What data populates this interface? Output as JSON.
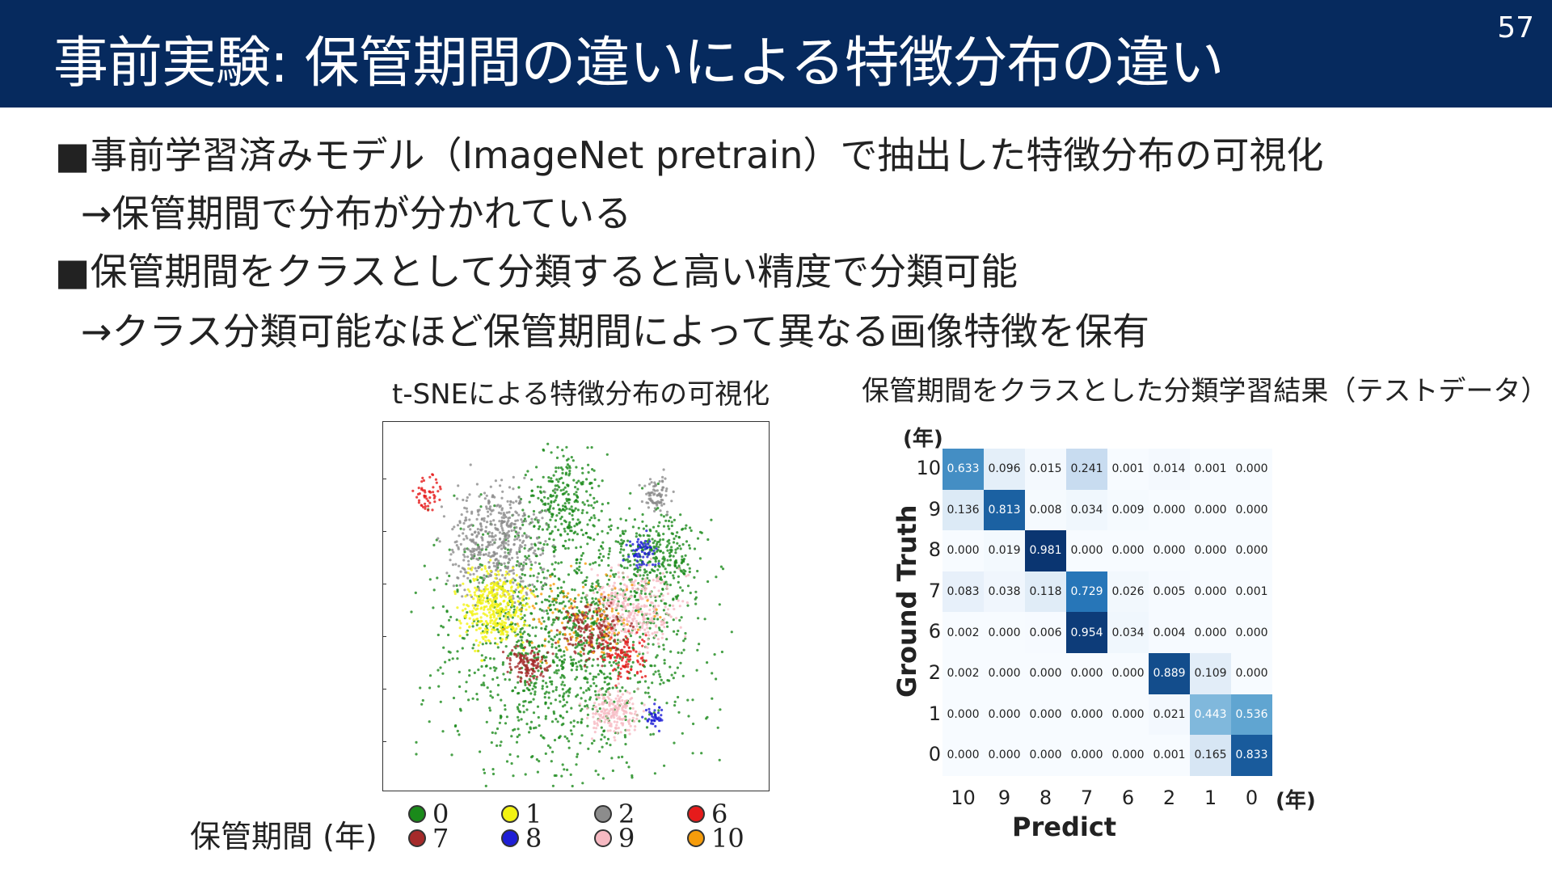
{
  "header": {
    "title": "事前実験: 保管期間の違いによる特徴分布の違い",
    "page_number": "57"
  },
  "bullets": [
    "■事前学習済みモデル（ImageNet pretrain）で抽出した特徴分布の可視化",
    "→保管期間で分布が分かれている",
    "■保管期間をクラスとして分類すると高い精度で分類可能",
    "→クラス分類可能なほど保管期間によって異なる画像特徴を保有"
  ],
  "tsne": {
    "caption": "t-SNEによる特徴分布の可視化",
    "legend_title": "保管期間 (年)",
    "legend": [
      {
        "label": "0",
        "color": "#1a8a1a"
      },
      {
        "label": "1",
        "color": "#f3f312"
      },
      {
        "label": "2",
        "color": "#8c8c8c"
      },
      {
        "label": "6",
        "color": "#e61b1b"
      },
      {
        "label": "7",
        "color": "#a52a2a"
      },
      {
        "label": "8",
        "color": "#1f1fd6"
      },
      {
        "label": "9",
        "color": "#f6b9c2"
      },
      {
        "label": "10",
        "color": "#f59c0b"
      }
    ]
  },
  "confusion_matrix": {
    "caption": "保管期間をクラスとした分類学習結果（テストデータ）",
    "y_unit": "(年)",
    "x_unit": "(年)",
    "ylabel": "Ground Truth",
    "xlabel": "Predict",
    "rows": [
      "10",
      "9",
      "8",
      "7",
      "6",
      "2",
      "1",
      "0"
    ],
    "cols": [
      "10",
      "9",
      "8",
      "7",
      "6",
      "2",
      "1",
      "0"
    ],
    "values": [
      [
        "0.633",
        "0.096",
        "0.015",
        "0.241",
        "0.001",
        "0.014",
        "0.001",
        "0.000"
      ],
      [
        "0.136",
        "0.813",
        "0.008",
        "0.034",
        "0.009",
        "0.000",
        "0.000",
        "0.000"
      ],
      [
        "0.000",
        "0.019",
        "0.981",
        "0.000",
        "0.000",
        "0.000",
        "0.000",
        "0.000"
      ],
      [
        "0.083",
        "0.038",
        "0.118",
        "0.729",
        "0.026",
        "0.005",
        "0.000",
        "0.001"
      ],
      [
        "0.002",
        "0.000",
        "0.006",
        "0.954",
        "0.034",
        "0.004",
        "0.000",
        "0.000"
      ],
      [
        "0.002",
        "0.000",
        "0.000",
        "0.000",
        "0.000",
        "0.889",
        "0.109",
        "0.000"
      ],
      [
        "0.000",
        "0.000",
        "0.000",
        "0.000",
        "0.000",
        "0.021",
        "0.443",
        "0.536"
      ],
      [
        "0.000",
        "0.000",
        "0.000",
        "0.000",
        "0.000",
        "0.001",
        "0.165",
        "0.833"
      ]
    ]
  }
}
